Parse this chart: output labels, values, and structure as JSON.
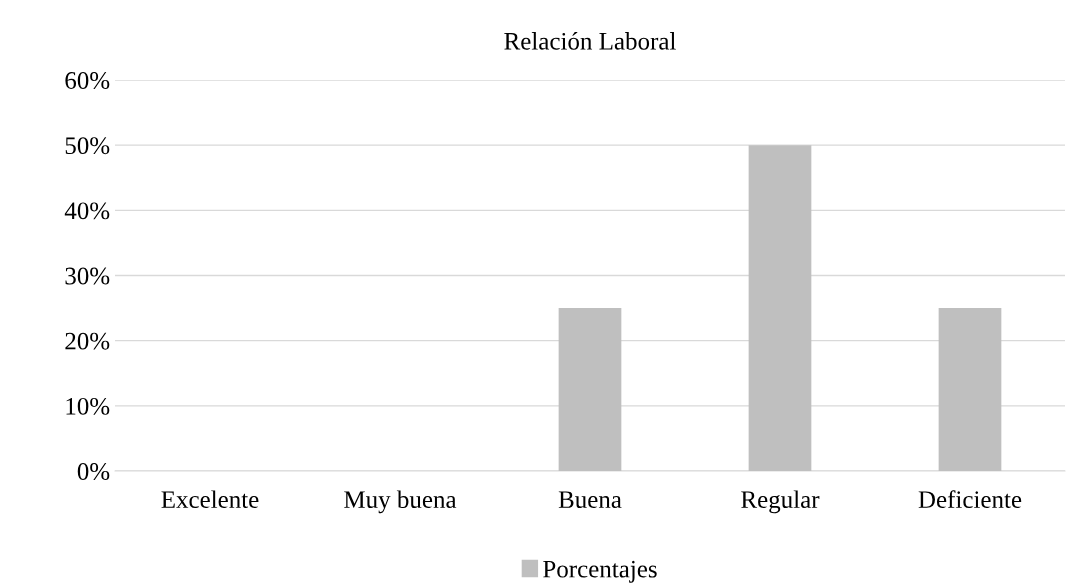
{
  "chart_data": {
    "type": "bar",
    "title": "Relación Laboral",
    "categories": [
      "Excelente",
      "Muy buena",
      "Buena",
      "Regular",
      "Deficiente"
    ],
    "series": [
      {
        "name": "Porcentajes",
        "color": "#bfbfbf",
        "values": [
          0,
          0,
          25,
          50,
          25
        ]
      }
    ],
    "ylim": [
      0,
      60
    ],
    "yticks": [
      {
        "value": 0,
        "label": "0%"
      },
      {
        "value": 10,
        "label": "10%"
      },
      {
        "value": 20,
        "label": "20%"
      },
      {
        "value": 30,
        "label": "30%"
      },
      {
        "value": 40,
        "label": "40%"
      },
      {
        "value": 50,
        "label": "50%"
      },
      {
        "value": 60,
        "label": "60%"
      }
    ],
    "grid": "y",
    "legend": "bottom"
  }
}
